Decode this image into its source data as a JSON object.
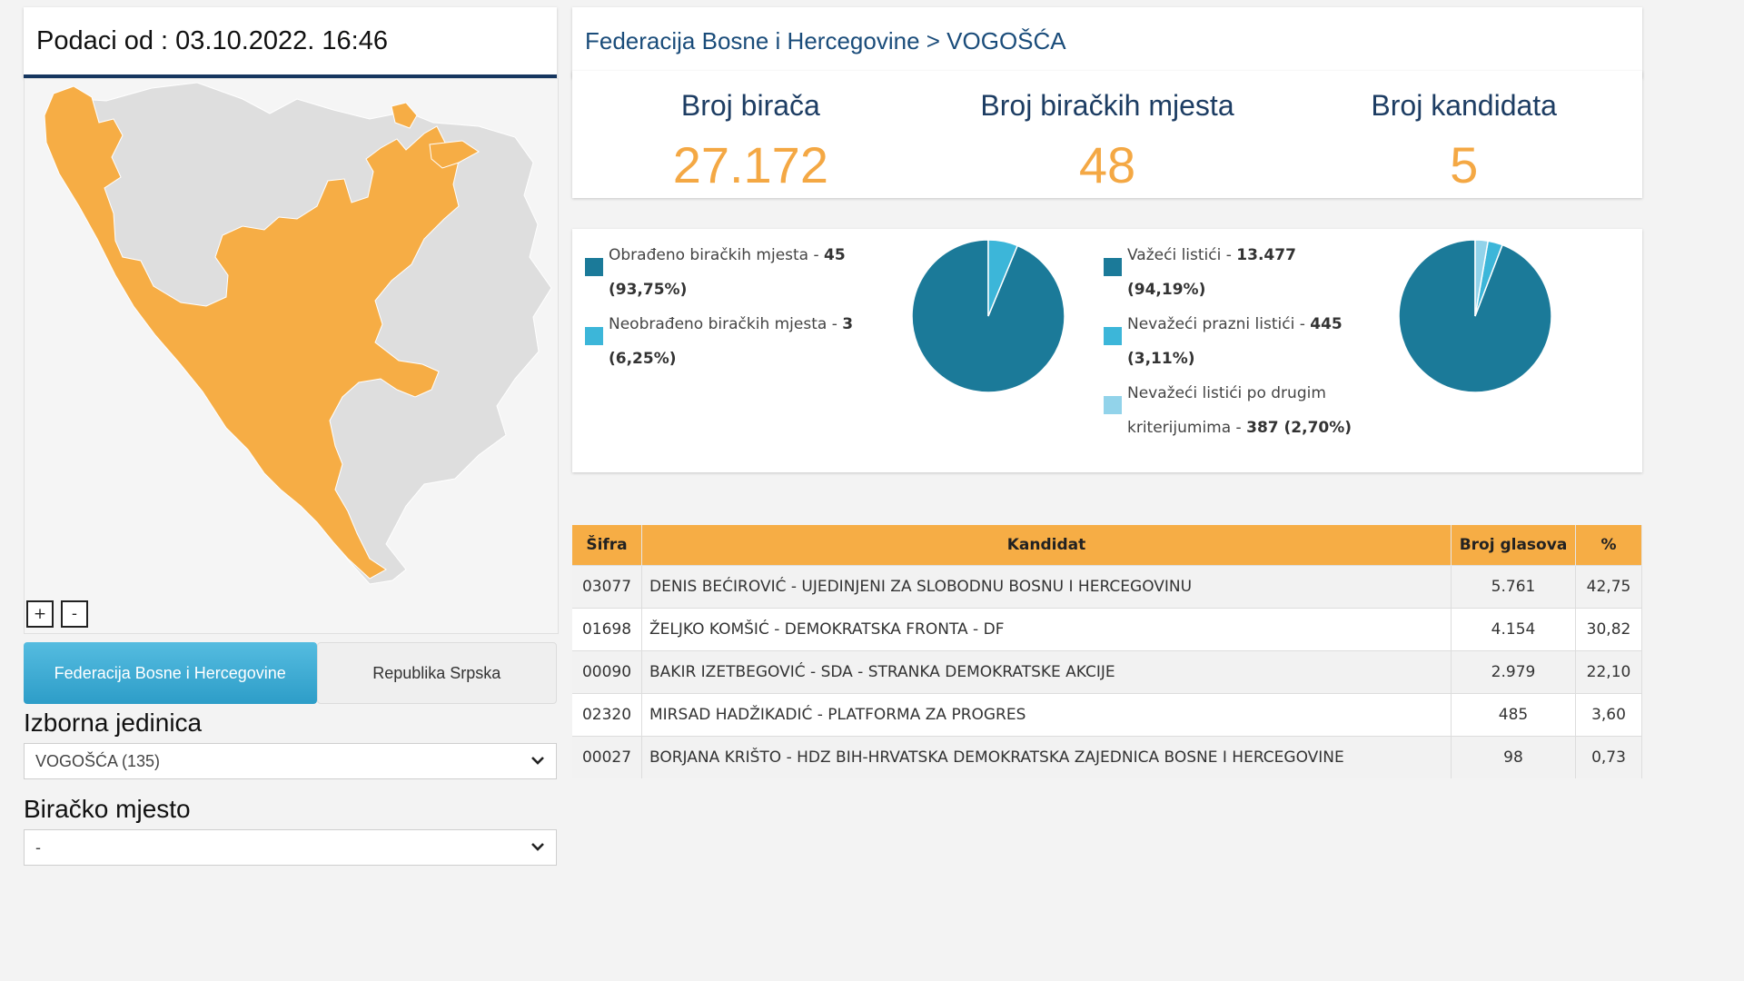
{
  "header": {
    "data_time": "Podaci od : 03.10.2022. 16:46"
  },
  "breadcrumb": "Federacija Bosne i Hercegovine > VOGOŠĆA",
  "map": {
    "zoom_in": "+",
    "zoom_out": "-"
  },
  "tabs": [
    {
      "label": "Federacija Bosne i Hercegovine",
      "active": true
    },
    {
      "label": "Republika Srpska",
      "active": false
    }
  ],
  "filters": {
    "unit_label": "Izborna jedinica",
    "unit_value": "VOGOŠĆA (135)",
    "polling_label": "Biračko mjesto",
    "polling_value": "-"
  },
  "stats": [
    {
      "label": "Broj birača",
      "value": "27.172"
    },
    {
      "label": "Broj biračkih mjesta",
      "value": "48"
    },
    {
      "label": "Broj kandidata",
      "value": "5"
    }
  ],
  "colors": {
    "dark_teal": "#1b7a99",
    "mid_teal": "#3cb6d9",
    "light_teal": "#92d3ea",
    "orange": "#f6ad45",
    "navy": "#16365f"
  },
  "chart_data": [
    {
      "type": "pie",
      "slices": [
        {
          "label": "Obrađeno biračkih mjesta",
          "value": 45,
          "percent": "93,75%"
        },
        {
          "label": "Neobrađeno biračkih mjesta",
          "value": 3,
          "percent": "6,25%"
        }
      ],
      "legend": [
        {
          "name": "Obrađeno biračkih mjesta - ",
          "value": "45",
          "pct": "(93,75%)"
        },
        {
          "name": "Neobrađeno biračkih mjesta - ",
          "value": "3",
          "pct": "(6,25%)"
        }
      ]
    },
    {
      "type": "pie",
      "slices": [
        {
          "label": "Važeći listići",
          "value": 13477,
          "percent": "94,19%"
        },
        {
          "label": "Nevažeći prazni listići",
          "value": 445,
          "percent": "3,11%"
        },
        {
          "label": "Nevažeći listići po drugim kriterijumima",
          "value": 387,
          "percent": "2,70%"
        }
      ],
      "legend": [
        {
          "name": "Važeći listići - ",
          "value": "13.477",
          "pct": "(94,19%)"
        },
        {
          "name": "Nevažeći prazni listići - ",
          "value": "445",
          "pct": "(3,11%)"
        },
        {
          "name": "Nevažeći listići po drugim",
          "name2": "kriterijumima - ",
          "value": "387 (2,70%)"
        }
      ]
    }
  ],
  "results": {
    "columns": [
      "Šifra",
      "Kandidat",
      "Broj glasova",
      "%"
    ],
    "rows": [
      [
        "03077",
        "DENIS BEĆIROVIĆ - UJEDINJENI ZA SLOBODNU BOSNU I HERCEGOVINU",
        "5.761",
        "42,75"
      ],
      [
        "01698",
        "ŽELJKO KOMŠIĆ - DEMOKRATSKA FRONTA - DF",
        "4.154",
        "30,82"
      ],
      [
        "00090",
        "BAKIR IZETBEGOVIĆ - SDA - STRANKA DEMOKRATSKE AKCIJE",
        "2.979",
        "22,10"
      ],
      [
        "02320",
        "MIRSAD HADŽIKADIĆ - PLATFORMA ZA PROGRES",
        "485",
        "3,60"
      ],
      [
        "00027",
        "BORJANA KRIŠTO - HDZ BIH-HRVATSKA DEMOKRATSKA ZAJEDNICA BOSNE I HERCEGOVINE",
        "98",
        "0,73"
      ]
    ]
  }
}
